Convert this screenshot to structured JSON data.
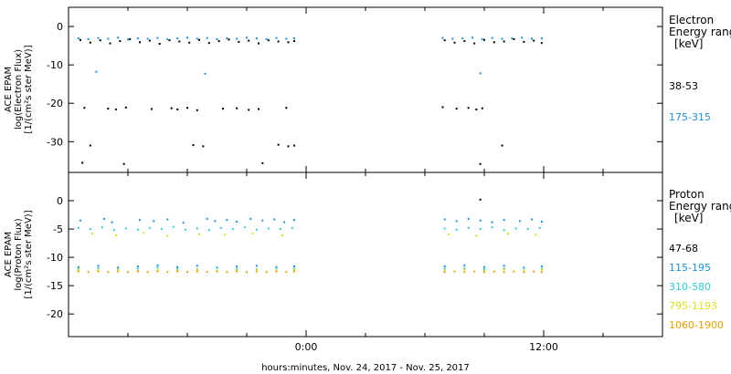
{
  "xlabel": "hours:minutes, Nov. 24, 2017 - Nov. 25, 2017",
  "x_ticks": [
    "0:00",
    "12:00"
  ],
  "chart_data": [
    {
      "type": "scatter",
      "panel": "electron",
      "ylabel": [
        "ACE EPAM",
        "log(Electron Flux)",
        "[1/(cm²s ster MeV)]"
      ],
      "ylim": [
        -38,
        5
      ],
      "yticks": [
        0,
        -10,
        -20,
        -30
      ],
      "xlim": [
        -12,
        18
      ],
      "legend_title": [
        "Electron",
        "Energy ranges",
        "[keV]"
      ],
      "series": [
        {
          "name": "38-53",
          "color": "#000000",
          "x": [
            -11.4,
            -10.9,
            -10.4,
            -9.9,
            -9.4,
            -8.9,
            -8.4,
            -7.9,
            -7.4,
            -6.9,
            -6.4,
            -5.9,
            -5.4,
            -4.9,
            -4.4,
            -3.9,
            -3.4,
            -2.9,
            -2.4,
            -1.9,
            -1.4,
            -0.9,
            -0.6,
            -11.2,
            -10.0,
            -9.6,
            -9.1,
            -7.8,
            -6.8,
            -6.5,
            -6.0,
            -5.5,
            -4.2,
            -3.5,
            -2.9,
            -2.4,
            -1.0,
            -10.9,
            -5.7,
            -5.2,
            -1.4,
            -0.9,
            -0.6,
            -11.3,
            -9.2,
            -2.2,
            7.0,
            7.5,
            8.0,
            8.5,
            9.0,
            9.5,
            10.0,
            10.5,
            11.0,
            11.5,
            11.9,
            6.9,
            7.6,
            8.2,
            8.6,
            8.9,
            9.9,
            8.8
          ],
          "y": [
            -3.5,
            -4.2,
            -3.6,
            -4.4,
            -3.8,
            -3.3,
            -4.1,
            -3.7,
            -4.5,
            -3.6,
            -3.9,
            -4.2,
            -3.5,
            -4.3,
            -3.8,
            -3.4,
            -4.0,
            -3.7,
            -4.4,
            -3.6,
            -3.9,
            -4.1,
            -3.8,
            -21.2,
            -21.4,
            -21.6,
            -21.1,
            -21.5,
            -21.3,
            -21.6,
            -21.2,
            -21.8,
            -21.4,
            -21.3,
            -21.7,
            -21.5,
            -21.2,
            -31.0,
            -30.9,
            -31.2,
            -30.8,
            -31.2,
            -31.0,
            -35.5,
            -35.8,
            -35.6,
            -3.6,
            -4.2,
            -3.8,
            -4.4,
            -3.5,
            -4.1,
            -3.9,
            -3.3,
            -4.0,
            -3.7,
            -4.3,
            -21.0,
            -21.4,
            -21.2,
            -21.6,
            -21.3,
            -31.0,
            -35.8
          ]
        },
        {
          "name": "175-315",
          "color": "#1e90e0",
          "x": [
            -11.5,
            -11.0,
            -10.5,
            -10.0,
            -9.5,
            -9.0,
            -8.5,
            -8.0,
            -7.5,
            -7.0,
            -6.5,
            -6.0,
            -5.5,
            -5.0,
            -4.5,
            -4.0,
            -3.5,
            -3.0,
            -2.5,
            -2.0,
            -1.5,
            -1.0,
            -0.6,
            -10.6,
            -5.1,
            6.9,
            7.4,
            7.9,
            8.4,
            8.9,
            9.4,
            9.9,
            10.4,
            10.9,
            11.4,
            11.9,
            8.8
          ],
          "y": [
            -3.1,
            -3.3,
            -3.0,
            -3.2,
            -2.9,
            -3.4,
            -3.1,
            -3.2,
            -3.0,
            -3.3,
            -3.1,
            -2.9,
            -3.2,
            -3.0,
            -3.3,
            -3.1,
            -3.2,
            -2.9,
            -3.1,
            -3.3,
            -3.0,
            -3.2,
            -3.1,
            -11.8,
            -12.3,
            -3.0,
            -3.2,
            -3.1,
            -2.9,
            -3.3,
            -3.0,
            -3.2,
            -3.1,
            -2.9,
            -3.2,
            -3.1,
            -12.2
          ]
        }
      ],
      "legend_labels": [
        "38-53",
        "175-315"
      ]
    },
    {
      "type": "scatter",
      "panel": "proton",
      "ylabel": [
        "ACE EPAM",
        "log(Proton Flux)",
        "[1/(cm²s ster MeV)]"
      ],
      "ylim": [
        -24,
        5
      ],
      "yticks": [
        0,
        -5,
        -10,
        -15,
        -20
      ],
      "xlim": [
        -12,
        18
      ],
      "legend_title": [
        "Proton",
        "Energy ranges",
        "[keV]"
      ],
      "series": [
        {
          "name": "47-68",
          "color": "#000000",
          "x": [
            8.8
          ],
          "y": [
            0.2
          ]
        },
        {
          "name": "115-195",
          "color": "#1e90e0",
          "x": [
            -11.4,
            -10.2,
            -9.8,
            -8.4,
            -7.7,
            -7.0,
            -6.2,
            -5.0,
            -4.6,
            -4.0,
            -3.5,
            -2.8,
            -2.2,
            -1.6,
            -1.1,
            -0.6,
            7.0,
            7.6,
            8.2,
            8.8,
            9.4,
            10.0,
            10.8,
            11.4,
            11.9,
            -11.5,
            -10.5,
            -9.5,
            -8.5,
            -7.5,
            -6.5,
            -5.5,
            -4.5,
            -3.5,
            -2.5,
            -1.5,
            -0.6,
            7.0,
            8.0,
            9.0,
            10.0,
            11.0,
            11.9
          ],
          "y": [
            -3.5,
            -3.2,
            -3.8,
            -3.4,
            -3.6,
            -3.3,
            -3.9,
            -3.2,
            -3.6,
            -3.4,
            -3.7,
            -3.2,
            -3.5,
            -3.3,
            -3.8,
            -3.4,
            -3.3,
            -3.6,
            -3.2,
            -3.5,
            -3.8,
            -3.4,
            -3.6,
            -3.3,
            -3.7,
            -11.7,
            -11.5,
            -11.8,
            -11.6,
            -11.4,
            -11.7,
            -11.5,
            -11.8,
            -11.6,
            -11.5,
            -11.7,
            -11.6,
            -11.6,
            -11.4,
            -11.7,
            -11.5,
            -11.8,
            -11.6
          ]
        },
        {
          "name": "310-580",
          "color": "#2ed0d0",
          "x": [
            -11.5,
            -10.9,
            -10.3,
            -9.7,
            -9.1,
            -8.5,
            -7.9,
            -7.3,
            -6.7,
            -6.1,
            -5.5,
            -4.9,
            -4.3,
            -3.7,
            -3.1,
            -2.5,
            -1.9,
            -1.3,
            -0.7,
            7.0,
            7.6,
            8.2,
            8.8,
            9.4,
            10.0,
            10.6,
            11.2,
            11.8,
            -11.5,
            -10.5,
            -9.5,
            -8.5,
            -7.5,
            -6.5,
            -5.5,
            -4.5,
            -3.5,
            -2.5,
            -1.5,
            -0.6,
            7.0,
            8.0,
            9.0,
            10.0,
            11.0,
            11.9
          ],
          "y": [
            -4.8,
            -5.0,
            -4.7,
            -5.2,
            -4.9,
            -5.1,
            -4.8,
            -5.0,
            -4.6,
            -5.1,
            -4.9,
            -5.2,
            -4.8,
            -5.0,
            -4.7,
            -5.1,
            -4.9,
            -5.0,
            -4.8,
            -4.9,
            -5.1,
            -4.8,
            -5.0,
            -4.7,
            -5.2,
            -4.9,
            -5.0,
            -4.8,
            -12.0,
            -11.9,
            -12.1,
            -12.0,
            -11.8,
            -12.0,
            -12.1,
            -11.9,
            -12.0,
            -12.1,
            -11.9,
            -12.0,
            -12.0,
            -11.9,
            -12.1,
            -12.0,
            -11.9,
            -12.0
          ]
        },
        {
          "name": "795-1193",
          "color": "#d8e020",
          "x": [
            -10.8,
            -9.6,
            -8.2,
            -7.0,
            -5.4,
            -4.1,
            -2.7,
            -1.2,
            7.2,
            8.6,
            10.2,
            11.6,
            -11.5,
            -10.5,
            -9.5,
            -8.5,
            -7.5,
            -6.5,
            -5.5,
            -4.5,
            -3.5,
            -2.5,
            -1.5,
            -0.6,
            7.0,
            8.0,
            9.0,
            10.0,
            11.0,
            11.9
          ],
          "y": [
            -5.8,
            -6.1,
            -5.7,
            -6.2,
            -5.9,
            -6.0,
            -5.8,
            -6.1,
            -5.9,
            -6.2,
            -5.8,
            -6.0,
            -12.2,
            -12.3,
            -12.2,
            -12.4,
            -12.2,
            -12.3,
            -12.2,
            -12.4,
            -12.3,
            -12.2,
            -12.3,
            -12.2,
            -12.3,
            -12.2,
            -12.4,
            -12.2,
            -12.3,
            -12.2
          ]
        },
        {
          "name": "1060-1900",
          "color": "#f0a000",
          "x": [
            -11.5,
            -11.0,
            -10.5,
            -10.0,
            -9.5,
            -9.0,
            -8.5,
            -8.0,
            -7.5,
            -7.0,
            -6.5,
            -6.0,
            -5.5,
            -5.0,
            -4.5,
            -4.0,
            -3.5,
            -3.0,
            -2.5,
            -2.0,
            -1.5,
            -1.0,
            -0.6,
            7.0,
            7.5,
            8.0,
            8.5,
            9.0,
            9.5,
            10.0,
            10.5,
            11.0,
            11.5,
            11.9
          ],
          "y": [
            -12.5,
            -12.6,
            -12.5,
            -12.6,
            -12.5,
            -12.6,
            -12.5,
            -12.6,
            -12.5,
            -12.6,
            -12.5,
            -12.6,
            -12.5,
            -12.6,
            -12.5,
            -12.6,
            -12.5,
            -12.6,
            -12.5,
            -12.6,
            -12.5,
            -12.6,
            -12.5,
            -12.6,
            -12.5,
            -12.6,
            -12.5,
            -12.6,
            -12.5,
            -12.6,
            -12.5,
            -12.6,
            -12.5,
            -12.6
          ]
        }
      ],
      "legend_labels": [
        "47-68",
        "115-195",
        "310-580",
        "795-1193",
        "1060-1900"
      ]
    }
  ]
}
